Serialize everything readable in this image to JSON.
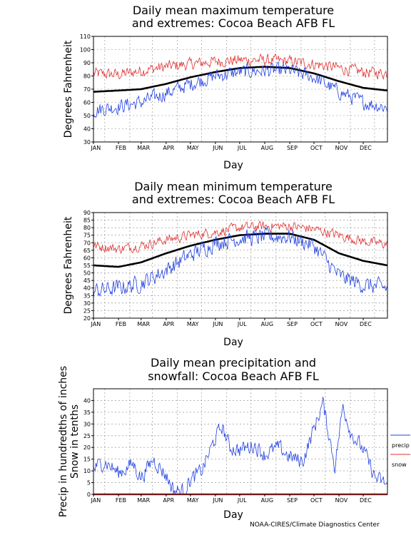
{
  "credit": "NOAA-CIRES/Climate Diagnostics Center",
  "months": [
    "JAN",
    "FEB",
    "MAR",
    "APR",
    "MAY",
    "JUN",
    "JUL",
    "AUG",
    "SEP",
    "OCT",
    "NOV",
    "DEC"
  ],
  "colors": {
    "max_line": "#e03030",
    "min_line": "#2040e0",
    "mean_line": "#000000",
    "grid": "#888888"
  },
  "chart_data": [
    {
      "type": "line",
      "title": [
        "Daily mean maximum temperature",
        "and extremes: Cocoa Beach AFB FL"
      ],
      "xlabel": "Day",
      "ylabel": "Degrees Fahrenheit",
      "ylim": [
        30,
        110
      ],
      "yticks": [
        30,
        40,
        50,
        60,
        70,
        80,
        90,
        100,
        110
      ],
      "grid": true,
      "series": [
        {
          "role": "record_high",
          "color": "#e03030",
          "noise": 4,
          "x": [
            1,
            32,
            60,
            91,
            121,
            152,
            182,
            213,
            244,
            274,
            305,
            335,
            365
          ],
          "y": [
            82,
            81,
            84,
            87,
            89,
            91,
            92,
            92,
            91,
            89,
            86,
            83,
            82
          ]
        },
        {
          "role": "mean",
          "color": "#000000",
          "noise": 0,
          "x": [
            1,
            32,
            60,
            91,
            121,
            152,
            182,
            213,
            244,
            274,
            305,
            335,
            365
          ],
          "y": [
            68,
            69,
            70,
            74,
            79,
            83,
            86,
            87,
            86,
            82,
            76,
            71,
            69
          ]
        },
        {
          "role": "record_low",
          "color": "#2040e0",
          "noise": 5,
          "x": [
            1,
            32,
            60,
            91,
            121,
            152,
            182,
            213,
            244,
            274,
            305,
            335,
            365
          ],
          "y": [
            54,
            57,
            60,
            67,
            74,
            80,
            83,
            84,
            84,
            79,
            68,
            60,
            56
          ]
        }
      ]
    },
    {
      "type": "line",
      "title": [
        "Daily mean minimum temperature",
        "and extremes: Cocoa Beach AFB FL"
      ],
      "xlabel": "Day",
      "ylabel": "Degrees Fahrenheit",
      "ylim": [
        20,
        90
      ],
      "yticks": [
        20,
        25,
        30,
        35,
        40,
        45,
        50,
        55,
        60,
        65,
        70,
        75,
        80,
        85,
        90
      ],
      "grid": true,
      "series": [
        {
          "role": "record_high",
          "color": "#e03030",
          "noise": 3,
          "x": [
            1,
            32,
            60,
            91,
            121,
            152,
            182,
            213,
            244,
            274,
            305,
            335,
            365
          ],
          "y": [
            68,
            66,
            68,
            72,
            75,
            77,
            80,
            81,
            81,
            79,
            75,
            71,
            69
          ]
        },
        {
          "role": "mean",
          "color": "#000000",
          "noise": 0,
          "x": [
            1,
            32,
            60,
            91,
            121,
            152,
            182,
            213,
            244,
            274,
            305,
            335,
            365
          ],
          "y": [
            55,
            54,
            57,
            63,
            68,
            72,
            75,
            76,
            76,
            72,
            63,
            58,
            55
          ]
        },
        {
          "role": "record_low",
          "color": "#2040e0",
          "noise": 5,
          "x": [
            1,
            32,
            60,
            91,
            121,
            152,
            182,
            213,
            244,
            274,
            305,
            335,
            365
          ],
          "y": [
            38,
            40,
            43,
            52,
            62,
            70,
            73,
            74,
            74,
            68,
            48,
            42,
            40
          ]
        }
      ]
    },
    {
      "type": "line",
      "title": [
        "Daily mean precipitation and",
        "snowfall: Cocoa Beach AFB FL"
      ],
      "xlabel": "Day",
      "ylabel": [
        "Precip in hundredths of inches",
        "Snow in tenths"
      ],
      "ylim": [
        0,
        45
      ],
      "yticks": [
        0,
        5,
        10,
        15,
        20,
        25,
        30,
        35,
        40
      ],
      "grid": true,
      "legend": {
        "placement": "right",
        "entries": [
          {
            "name": "precip",
            "color": "#2040e0"
          },
          {
            "name": "snow",
            "color": "#e03030"
          }
        ]
      },
      "series": [
        {
          "name": "precip",
          "color": "#2040e0",
          "noise": 3,
          "x": [
            1,
            15,
            32,
            50,
            60,
            75,
            91,
            100,
            110,
            121,
            135,
            152,
            160,
            170,
            182,
            200,
            213,
            230,
            244,
            260,
            274,
            285,
            300,
            310,
            320,
            335,
            350,
            365
          ],
          "y": [
            11,
            14,
            9,
            13,
            7,
            15,
            8,
            2,
            1,
            6,
            10,
            24,
            29,
            20,
            19,
            21,
            17,
            20,
            16,
            14,
            28,
            39,
            12,
            38,
            26,
            19,
            7,
            4
          ]
        },
        {
          "name": "snow",
          "color": "#e03030",
          "noise": 0,
          "x": [
            1,
            365
          ],
          "y": [
            0,
            0
          ]
        }
      ]
    }
  ]
}
